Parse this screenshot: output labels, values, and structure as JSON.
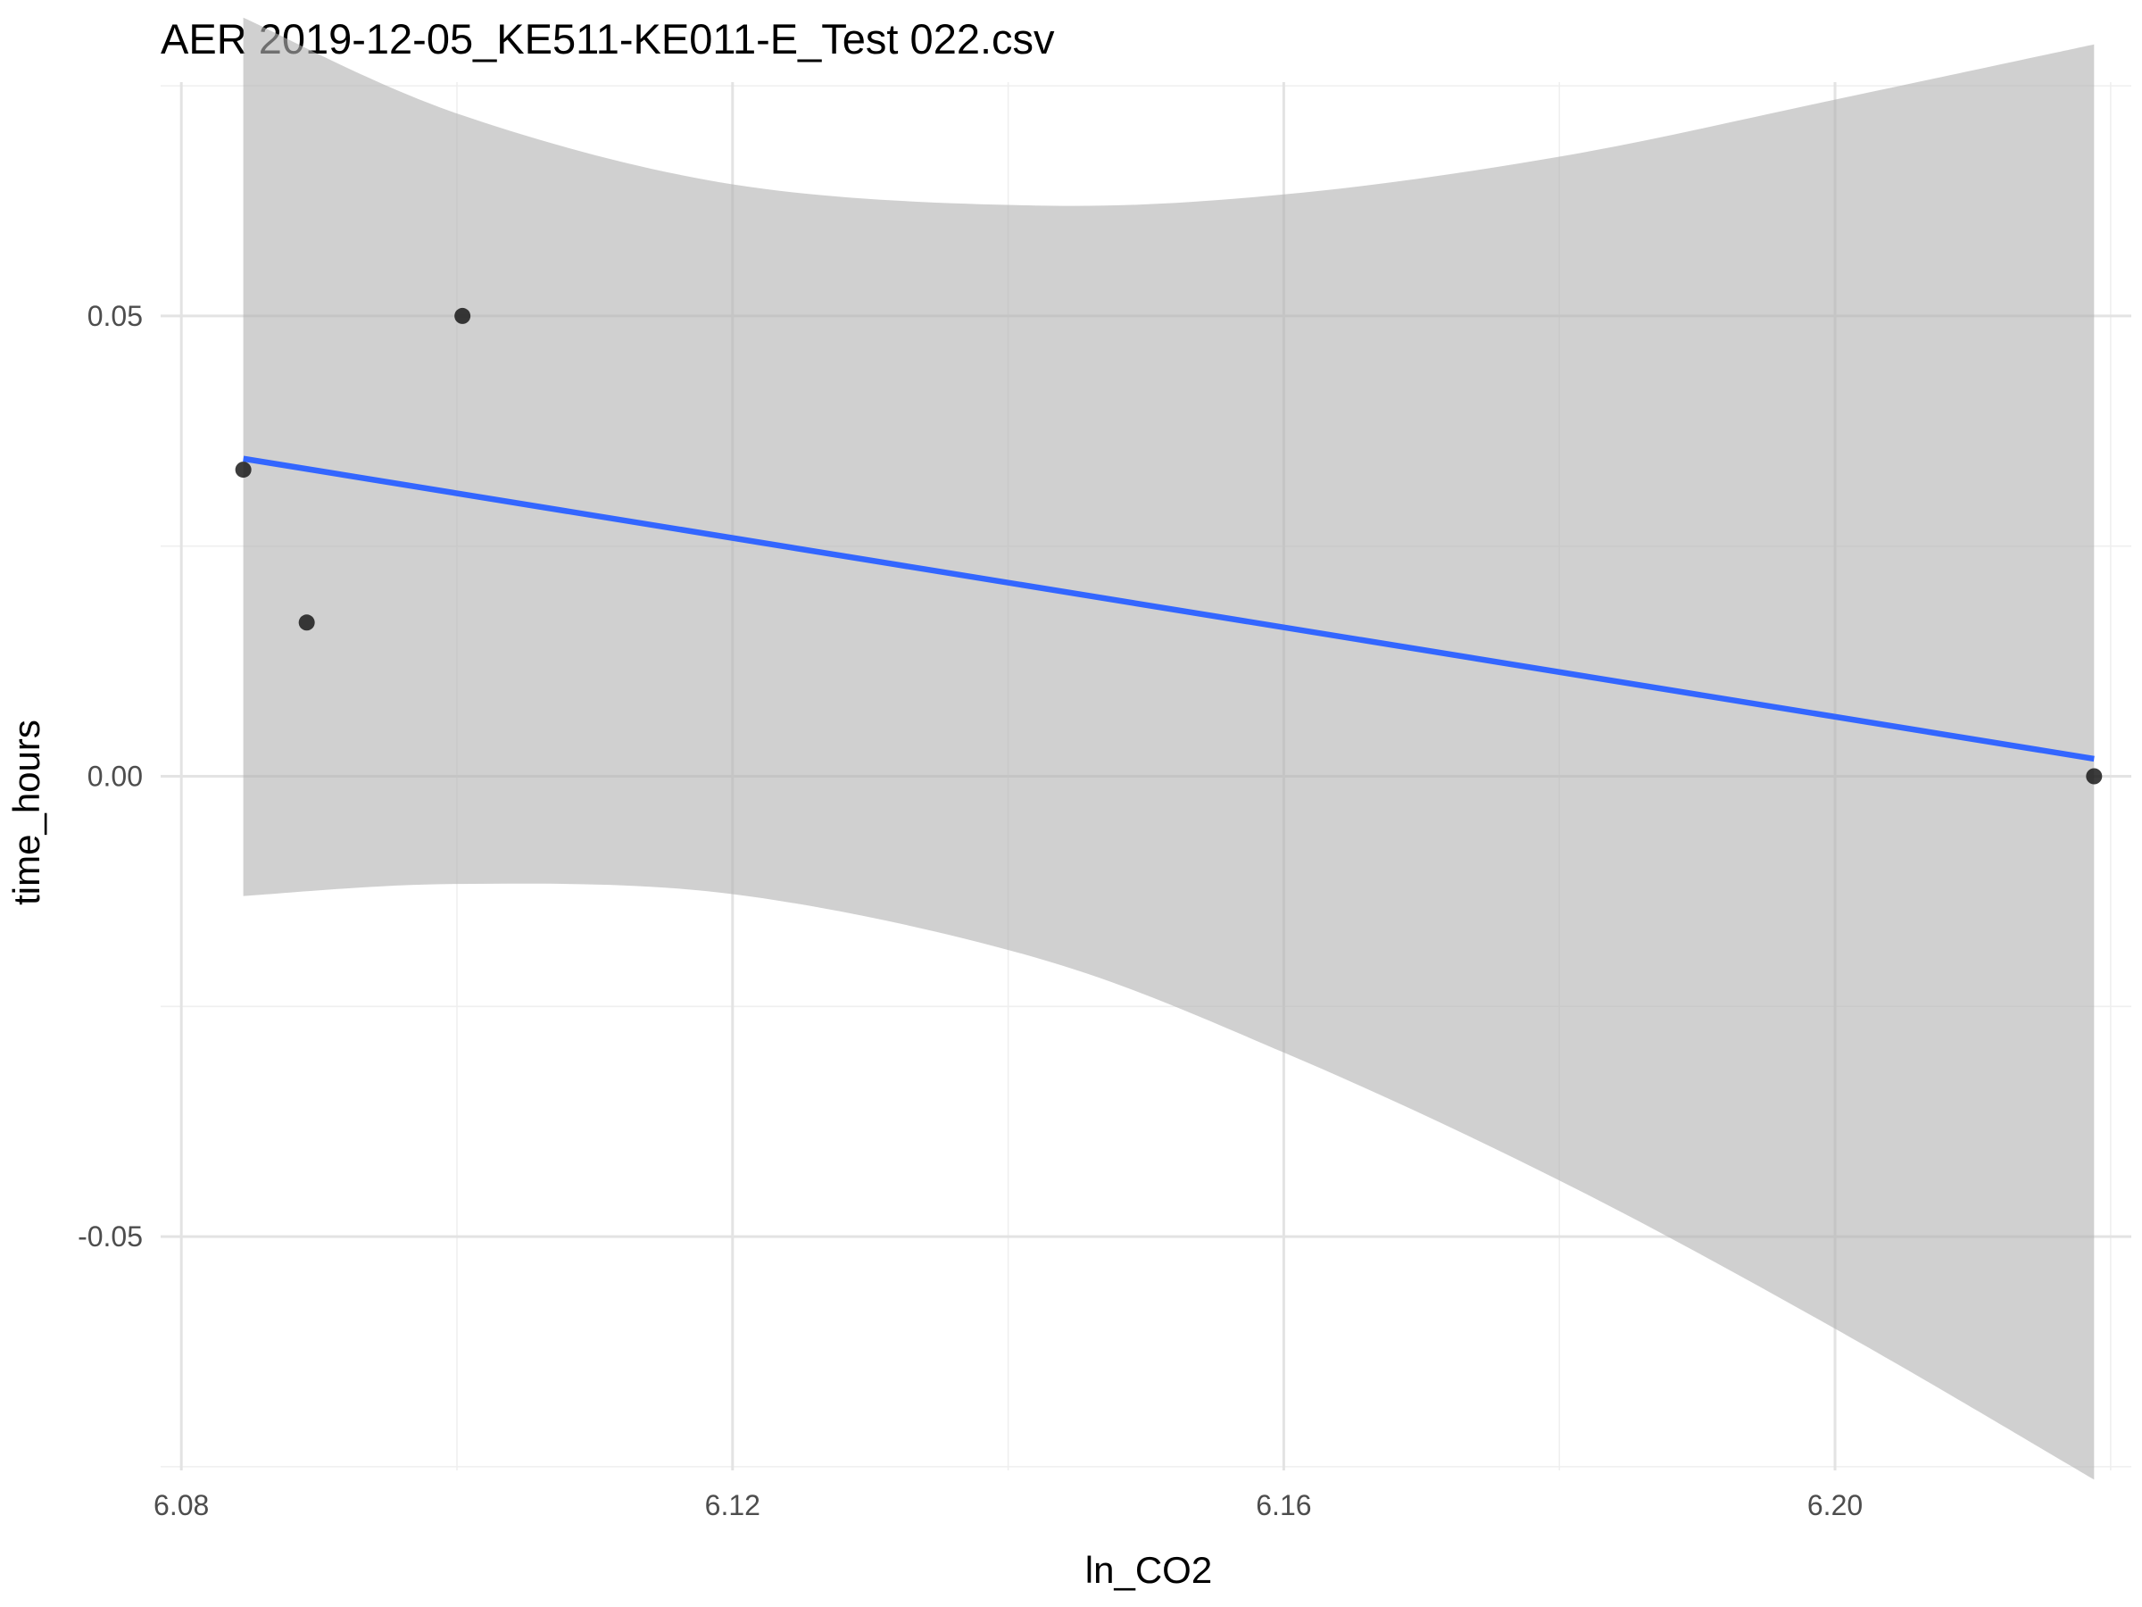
{
  "chart_data": {
    "type": "scatter",
    "title": "AER 2019-12-05_KE511-KE011-E_Test 022.csv",
    "xlabel": "ln_CO2",
    "ylabel": "time_hours",
    "xlim": [
      6.0785,
      6.2215
    ],
    "ylim": [
      -0.0754,
      0.0754
    ],
    "x_ticks": [
      6.08,
      6.12,
      6.16,
      6.2
    ],
    "x_tick_labels": [
      "6.08",
      "6.12",
      "6.16",
      "6.20"
    ],
    "x_minor_ticks": [
      6.1,
      6.14,
      6.18,
      6.22
    ],
    "y_ticks": [
      -0.05,
      0.0,
      0.05
    ],
    "y_tick_labels": [
      "-0.05",
      "0.00",
      "0.05"
    ],
    "y_minor_ticks": [
      -0.075,
      -0.025,
      0.025,
      0.075
    ],
    "grid": true,
    "colors": {
      "points": "#1a1a1a",
      "fit_line": "#3366ff",
      "confidence_band": "#b3b3b3"
    },
    "points": [
      {
        "x": 6.0845,
        "y": 0.0333
      },
      {
        "x": 6.0891,
        "y": 0.0167
      },
      {
        "x": 6.1004,
        "y": 0.05
      },
      {
        "x": 6.2188,
        "y": 0.0
      }
    ],
    "fit_line": [
      {
        "x": 6.0845,
        "y": 0.0345
      },
      {
        "x": 6.2188,
        "y": 0.0019
      }
    ],
    "confidence_band": [
      {
        "x": 6.0845,
        "upper": 0.0824,
        "lower": -0.013
      },
      {
        "x": 6.1,
        "upper": 0.072,
        "lower": -0.0117
      },
      {
        "x": 6.12,
        "upper": 0.0643,
        "lower": -0.0128
      },
      {
        "x": 6.142,
        "upper": 0.062,
        "lower": -0.0197
      },
      {
        "x": 6.16,
        "upper": 0.0632,
        "lower": -0.03
      },
      {
        "x": 6.18,
        "upper": 0.0673,
        "lower": -0.0439
      },
      {
        "x": 6.2,
        "upper": 0.0735,
        "lower": -0.06
      },
      {
        "x": 6.2188,
        "upper": 0.0795,
        "lower": -0.0764
      }
    ]
  }
}
